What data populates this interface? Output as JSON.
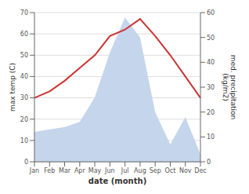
{
  "chart_data": {
    "type": "line",
    "xlabel": "date (month)",
    "ylabel": "max temp (C)",
    "y2label": "med. precipitation\n(kg/m2)",
    "categories": [
      "Jan",
      "Feb",
      "Mar",
      "Apr",
      "May",
      "Jun",
      "Jul",
      "Aug",
      "Sep",
      "Oct",
      "Nov",
      "Dec"
    ],
    "series": [
      {
        "type": "area",
        "axis": "y2",
        "color": "#c5d5ec",
        "values": [
          12,
          13,
          14,
          16,
          26,
          44,
          58,
          50,
          20,
          7,
          18,
          3
        ]
      },
      {
        "type": "line",
        "color": "#cc3333",
        "values": [
          30,
          33,
          38,
          44,
          50,
          59,
          62,
          67,
          59,
          50,
          40,
          30
        ]
      }
    ],
    "ylim": [
      0,
      70
    ],
    "yticks": [
      0,
      10,
      20,
      30,
      40,
      50,
      60,
      70
    ],
    "y2lim": [
      0,
      60
    ],
    "y2ticks": [
      0,
      10,
      20,
      30,
      40,
      50,
      60
    ],
    "grid": true
  }
}
